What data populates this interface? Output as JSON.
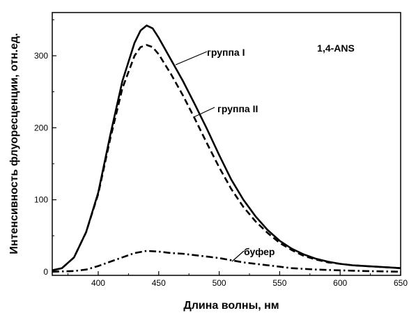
{
  "chart_data": {
    "type": "line",
    "xlabel": "Длина волны, нм",
    "ylabel": "Интенсивность флуоресценции, отн.ед.",
    "xlim": [
      362,
      650
    ],
    "ylim": [
      -5,
      360
    ],
    "x_ticks": [
      400,
      450,
      500,
      550,
      600,
      650
    ],
    "y_ticks": [
      0,
      100,
      200,
      300
    ],
    "grid": false,
    "annotations": [
      {
        "text": "1,4-ANS"
      }
    ],
    "series": [
      {
        "name": "группа I",
        "style": "solid",
        "x": [
          362,
          370,
          380,
          390,
          400,
          410,
          420,
          430,
          435,
          440,
          445,
          450,
          460,
          470,
          480,
          490,
          500,
          510,
          520,
          530,
          540,
          550,
          560,
          570,
          580,
          590,
          600,
          610,
          620,
          630,
          640,
          650
        ],
        "y": [
          2,
          5,
          20,
          55,
          110,
          190,
          265,
          318,
          335,
          342,
          338,
          325,
          295,
          265,
          232,
          198,
          162,
          128,
          100,
          77,
          58,
          43,
          32,
          24,
          18,
          14,
          11,
          9,
          8,
          7,
          6,
          5
        ]
      },
      {
        "name": "группа II",
        "style": "dashed",
        "x": [
          362,
          370,
          380,
          390,
          400,
          410,
          420,
          430,
          435,
          440,
          445,
          450,
          460,
          470,
          480,
          490,
          500,
          510,
          520,
          530,
          540,
          550,
          560,
          570,
          580,
          590,
          600,
          610,
          620,
          630,
          640,
          650
        ],
        "y": [
          2,
          5,
          20,
          55,
          108,
          185,
          255,
          300,
          312,
          315,
          312,
          302,
          275,
          245,
          212,
          178,
          145,
          115,
          90,
          70,
          54,
          40,
          30,
          22,
          17,
          13,
          11,
          9,
          8,
          7,
          6,
          5
        ]
      },
      {
        "name": "буфер",
        "style": "dashdot",
        "x": [
          362,
          380,
          390,
          400,
          410,
          420,
          430,
          440,
          450,
          460,
          470,
          480,
          490,
          500,
          510,
          520,
          530,
          540,
          550,
          560,
          580,
          600,
          620,
          650
        ],
        "y": [
          0,
          1,
          3,
          8,
          14,
          20,
          26,
          29,
          28,
          26,
          25,
          23,
          21,
          19,
          16,
          13,
          11,
          9,
          7,
          5,
          3,
          2,
          1,
          0
        ]
      }
    ]
  }
}
